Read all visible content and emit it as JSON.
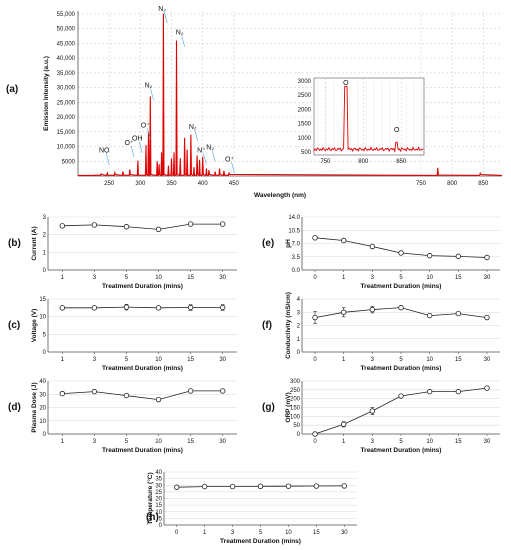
{
  "figure": {
    "panels": [
      {
        "label": "(a)"
      },
      {
        "label": "(b)"
      },
      {
        "label": "(c)"
      },
      {
        "label": "(d)"
      },
      {
        "label": "(e)"
      },
      {
        "label": "(f)"
      },
      {
        "label": "(g)"
      },
      {
        "label": "(h)"
      }
    ]
  },
  "chart_data": [
    {
      "id": "a",
      "type": "line",
      "xlabel": "Wavelength (nm)",
      "ylabel": "Emission Intensity (a.u.)",
      "xlim": [
        200,
        880
      ],
      "ylim": [
        0,
        56000
      ],
      "xticks": [
        250,
        300,
        350,
        400,
        450,
        750,
        800,
        850
      ],
      "yticks": [
        5000,
        10000,
        15000,
        20000,
        25000,
        30000,
        35000,
        40000,
        45000,
        50000,
        55000
      ],
      "ytick_labels": [
        "5000",
        "10,000",
        "15,000",
        "20,000",
        "25,000",
        "30,000",
        "35,000",
        "40,000",
        "45,000",
        "50,000",
        "55,000"
      ],
      "grid": true,
      "colors": {
        "series": "#e00000",
        "annotation_lines": "#4aa3d6"
      },
      "peaks": [
        {
          "x": 228,
          "y": 300
        },
        {
          "x": 237,
          "y": 700
        },
        {
          "x": 247,
          "y": 1000
        },
        {
          "x": 259,
          "y": 1100
        },
        {
          "x": 272,
          "y": 1600
        },
        {
          "x": 283,
          "y": 2200
        },
        {
          "x": 296,
          "y": 5200
        },
        {
          "x": 309,
          "y": 10500
        },
        {
          "x": 313,
          "y": 15000
        },
        {
          "x": 316,
          "y": 27000
        },
        {
          "x": 327,
          "y": 5000
        },
        {
          "x": 330,
          "y": 4000
        },
        {
          "x": 334,
          "y": 8000
        },
        {
          "x": 337,
          "y": 55000
        },
        {
          "x": 345,
          "y": 3500
        },
        {
          "x": 350,
          "y": 6000
        },
        {
          "x": 354,
          "y": 8000
        },
        {
          "x": 358,
          "y": 46000
        },
        {
          "x": 364,
          "y": 6000
        },
        {
          "x": 371,
          "y": 13000
        },
        {
          "x": 375,
          "y": 9000
        },
        {
          "x": 381,
          "y": 14000
        },
        {
          "x": 386,
          "y": 3000
        },
        {
          "x": 391,
          "y": 7000
        },
        {
          "x": 395,
          "y": 5500
        },
        {
          "x": 400,
          "y": 6500
        },
        {
          "x": 406,
          "y": 2500
        },
        {
          "x": 410,
          "y": 2000
        },
        {
          "x": 420,
          "y": 1500
        },
        {
          "x": 427,
          "y": 2500
        },
        {
          "x": 434,
          "y": 1800
        },
        {
          "x": 442,
          "y": 1200
        },
        {
          "x": 777,
          "y": 2800
        },
        {
          "x": 845,
          "y": 900
        }
      ],
      "baseline": 200,
      "annotations": [
        {
          "text": "NO",
          "x": 242,
          "y": 8000
        },
        {
          "text": "O⁺",
          "x": 282,
          "y": 10500
        },
        {
          "text": "OH",
          "x": 295,
          "y": 12000
        },
        {
          "text": "O⁺",
          "x": 308,
          "y": 16500
        },
        {
          "text": "N₂",
          "x": 313,
          "y": 30000
        },
        {
          "text": "N₂",
          "x": 335,
          "y": 56000
        },
        {
          "text": "N₂",
          "x": 363,
          "y": 48000
        },
        {
          "text": "N₂",
          "x": 384,
          "y": 16000
        },
        {
          "text": "N⁺",
          "x": 398,
          "y": 8000
        },
        {
          "text": "N₂",
          "x": 412,
          "y": 9000
        },
        {
          "text": "O⁺",
          "x": 443,
          "y": 5000
        }
      ],
      "inset": {
        "xlim": [
          735,
          880
        ],
        "ylim": [
          400,
          3100
        ],
        "xticks": [
          750,
          800,
          850
        ],
        "yticks": [
          500,
          1000,
          1500,
          2000,
          2500,
          3000
        ],
        "peaks": [
          {
            "x": 777,
            "y": 2800
          },
          {
            "x": 844,
            "y": 850
          }
        ],
        "baseline": 600,
        "annotations": [
          {
            "text": "O",
            "x": 777,
            "y": 2850
          },
          {
            "text": "O",
            "x": 844,
            "y": 1200
          }
        ]
      }
    },
    {
      "id": "b",
      "type": "line",
      "ylabel": "Current (A)",
      "xlabel": "Treatment Duration (mins)",
      "categories": [
        "1",
        "3",
        "5",
        "10",
        "15",
        "30"
      ],
      "values": [
        2.5,
        2.55,
        2.45,
        2.3,
        2.6,
        2.6
      ],
      "errors": [
        0.05,
        0.05,
        0.05,
        0.1,
        0.05,
        0.05
      ],
      "ylim": [
        0,
        3
      ],
      "yticks": [
        0,
        1,
        2,
        3
      ],
      "grid": true
    },
    {
      "id": "c",
      "type": "line",
      "ylabel": "Voltage (V)",
      "xlabel": "Treatment Duration (mins)",
      "categories": [
        "1",
        "3",
        "5",
        "10",
        "15",
        "30"
      ],
      "values": [
        12.5,
        12.5,
        12.7,
        12.5,
        12.6,
        12.6
      ],
      "errors": [
        0.3,
        0.3,
        0.8,
        0.3,
        0.8,
        0.8
      ],
      "ylim": [
        0,
        15
      ],
      "yticks": [
        0,
        5,
        10,
        15
      ],
      "grid": true
    },
    {
      "id": "d",
      "type": "line",
      "ylabel": "Plasma Dose (J)",
      "xlabel": "Treatment Duration (mins)",
      "categories": [
        "1",
        "3",
        "5",
        "10",
        "15",
        "30"
      ],
      "values": [
        30.5,
        32,
        29,
        26,
        32.5,
        32.5
      ],
      "errors": [
        0.5,
        0.5,
        0.5,
        0.5,
        0.5,
        0.5
      ],
      "ylim": [
        0,
        40
      ],
      "yticks": [
        0,
        10,
        20,
        30,
        40
      ],
      "grid": true
    },
    {
      "id": "e",
      "type": "line",
      "ylabel": "pH",
      "xlabel": "Treatment Duration (mins)",
      "categories": [
        "0",
        "1",
        "3",
        "5",
        "10",
        "15",
        "30"
      ],
      "values": [
        8.5,
        7.8,
        6.2,
        4.5,
        3.8,
        3.6,
        3.3
      ],
      "errors": [
        0.1,
        0.1,
        0.1,
        0.1,
        0.1,
        0.1,
        0.1
      ],
      "ylim": [
        0,
        14
      ],
      "yticks": [
        0,
        3.5,
        7,
        10.5,
        14
      ],
      "ytick_labels": [
        "0.0",
        "3.5",
        "7.0",
        "10.5",
        "14.0"
      ],
      "grid": true
    },
    {
      "id": "f",
      "type": "line",
      "ylabel": "Conductivity (mS/cm)",
      "xlabel": "Treatment Duration (mins)",
      "categories": [
        "0",
        "1",
        "3",
        "5",
        "10",
        "15",
        "30"
      ],
      "values": [
        2.6,
        3.0,
        3.2,
        3.35,
        2.75,
        2.9,
        2.6
      ],
      "errors": [
        0.45,
        0.35,
        0.25,
        0.1,
        0.1,
        0.1,
        0.1
      ],
      "ylim": [
        0,
        4
      ],
      "yticks": [
        0,
        1,
        2,
        3,
        4
      ],
      "grid": true
    },
    {
      "id": "g",
      "type": "line",
      "ylabel": "ORP (mV)",
      "xlabel": "Treatment Duration (mins)",
      "categories": [
        "0",
        "1",
        "3",
        "5",
        "10",
        "15",
        "30"
      ],
      "values": [
        0,
        55,
        130,
        215,
        240,
        240,
        260
      ],
      "errors": [
        5,
        15,
        20,
        5,
        5,
        5,
        5
      ],
      "ylim": [
        0,
        300
      ],
      "yticks": [
        0,
        50,
        100,
        150,
        200,
        250,
        300
      ],
      "grid": true
    },
    {
      "id": "h",
      "type": "line",
      "ylabel": "Temperature (°C)",
      "xlabel": "Treatment Duration (mins)",
      "categories": [
        "0",
        "1",
        "3",
        "5",
        "10",
        "15",
        "30"
      ],
      "values": [
        28.5,
        29,
        29,
        29.2,
        29.3,
        29.4,
        29.5
      ],
      "errors": [
        0.5,
        0.5,
        0.5,
        0.5,
        0.5,
        0.8,
        0.5
      ],
      "ylim": [
        0,
        40
      ],
      "yticks": [
        0,
        5,
        10,
        15,
        20,
        25,
        30,
        35,
        40
      ],
      "grid": true
    }
  ]
}
